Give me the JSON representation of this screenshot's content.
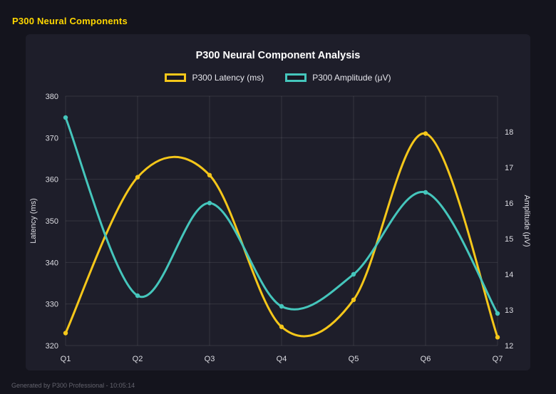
{
  "page": {
    "title": "P300 Neural Components",
    "title_color": "#ffd700",
    "background": "#14141d",
    "panel_background": "#1e1e2a"
  },
  "footer": {
    "text": "Generated by P300 Professional - 10:05:14"
  },
  "chart_data": {
    "type": "line",
    "title": "P300 Neural Component Analysis",
    "categories": [
      "Q1",
      "Q2",
      "Q3",
      "Q4",
      "Q5",
      "Q6",
      "Q7"
    ],
    "series": [
      {
        "name": "P300 Latency (ms)",
        "axis": "left",
        "color": "#f5c71a",
        "values": [
          323,
          360.5,
          361,
          324.5,
          331,
          371,
          322
        ]
      },
      {
        "name": "P300 Amplitude (μV)",
        "axis": "right",
        "color": "#45c6bc",
        "values": [
          18.4,
          13.4,
          16.0,
          13.1,
          14.0,
          16.3,
          12.9
        ]
      }
    ],
    "left_axis": {
      "label": "Latency (ms)",
      "min": 320,
      "max": 380,
      "step": 10
    },
    "right_axis": {
      "label": "Amplitude (μV)",
      "min": 12,
      "max": 19,
      "step": 1
    },
    "grid": true,
    "legend_position": "top",
    "curve": "smooth"
  }
}
